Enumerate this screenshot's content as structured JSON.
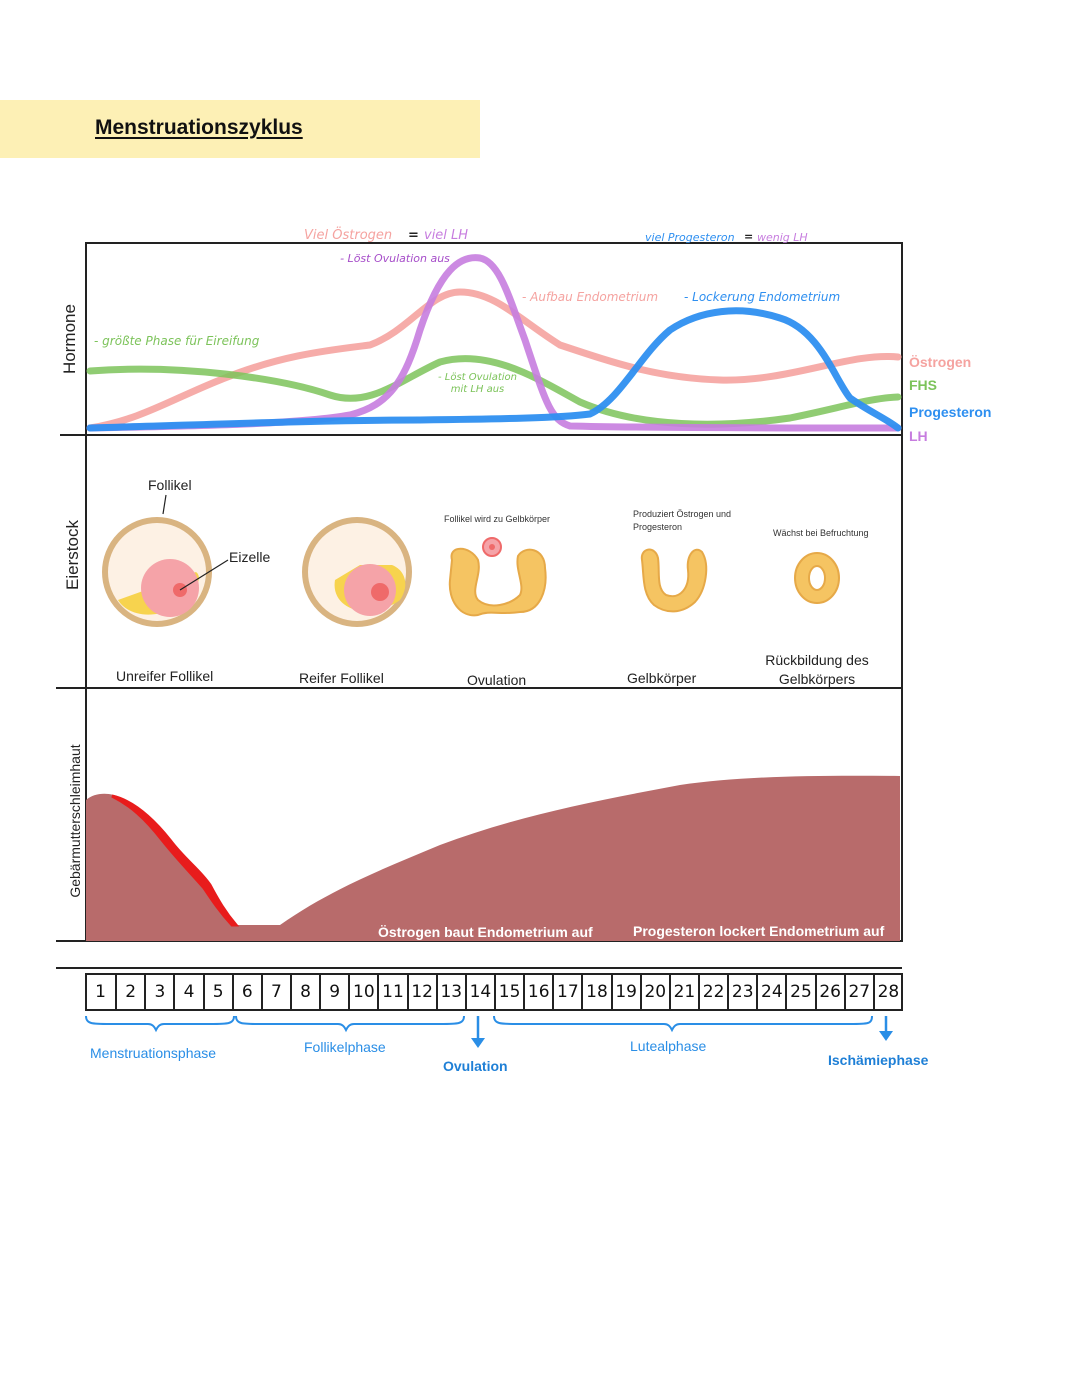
{
  "title": "Menstruationszyklus",
  "row_labels": {
    "hormones": "Hormone",
    "ovary": "Eierstock",
    "endometrium": "Gebärmutterschleimhaut"
  },
  "annotations": {
    "much_estrogen": "Viel Östrogen",
    "equals1": "=",
    "much_lh": "viel LH",
    "triggers_ovulation_top": "- Löst Ovulation aus",
    "largest_ripening": "- größte Phase für Eireifung",
    "triggers_ovulation_mid": "- Löst Ovulation mit LH aus",
    "build_endometrium": "- Aufbau Endometrium",
    "much_progesterone": "viel Progesteron",
    "equals2": "=",
    "little_lh": "wenig LH",
    "loosen_endometrium": "- Lockerung Endometrium"
  },
  "legend": [
    {
      "name": "Östrogen",
      "color": "#f5a3a0"
    },
    {
      "name": "FHS",
      "color": "#7cc35a"
    },
    {
      "name": "Progesteron",
      "color": "#2e8ff0"
    },
    {
      "name": "LH",
      "color": "#c77ddf"
    }
  ],
  "ovary": {
    "follicle_label": "Follikel",
    "egg_label": "Eizelle",
    "stages": [
      {
        "name": "Unreifer Follikel",
        "note": ""
      },
      {
        "name": "Reifer Follikel",
        "note": ""
      },
      {
        "name": "Ovulation",
        "note": "Follikel wird zu Gelbkörper"
      },
      {
        "name": "Gelbkörper",
        "note": "Produziert Östrogen und Progesteron"
      },
      {
        "name": "Rückbildung des Gelbkörpers",
        "note": "Wächst bei Befruchtung"
      }
    ]
  },
  "endometrium": {
    "estrogen_text": "Östrogen baut Endometrium auf",
    "progesterone_text": "Progesteron lockert Endometrium auf",
    "color": "#b86b6b",
    "bleed_color": "#e81c1c"
  },
  "days": [
    "1",
    "2",
    "3",
    "4",
    "5",
    "6",
    "7",
    "8",
    "9",
    "10",
    "11",
    "12",
    "13",
    "14",
    "15",
    "16",
    "17",
    "18",
    "19",
    "20",
    "21",
    "22",
    "23",
    "24",
    "25",
    "26",
    "27",
    "28"
  ],
  "phases": {
    "menstruation": "Menstruationsphase",
    "follicular": "Follikelphase",
    "ovulation": "Ovulation",
    "luteal": "Lutealphase",
    "ischemic": "Ischämiephase"
  }
}
